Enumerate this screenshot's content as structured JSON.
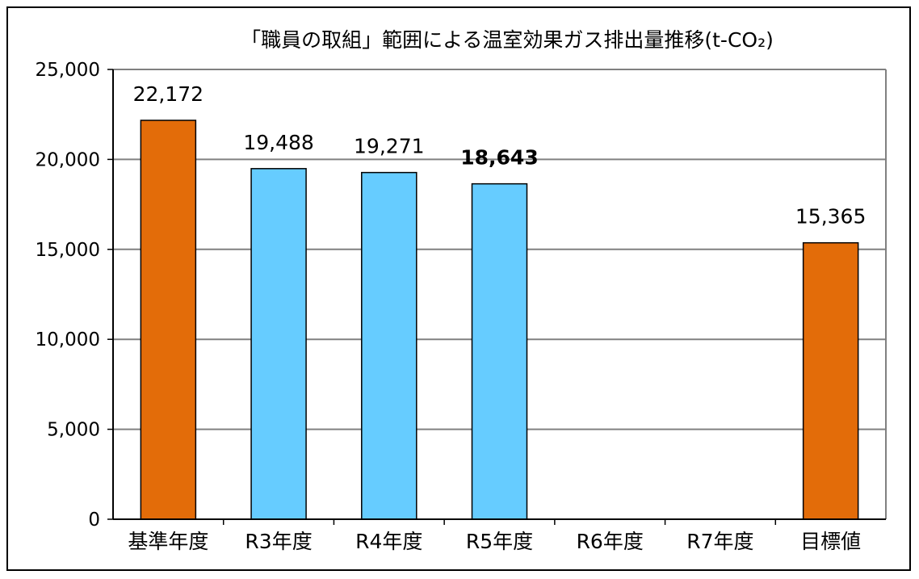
{
  "chart_data": {
    "type": "bar",
    "title": "「職員の取組」範囲による温室効果ガス排出量推移(t-CO₂)",
    "categories": [
      "基準年度",
      "R3年度",
      "R4年度",
      "R5年度",
      "R6年度",
      "R7年度",
      "目標値"
    ],
    "values": [
      22172,
      19488,
      19271,
      18643,
      null,
      null,
      15365
    ],
    "value_labels": [
      "22,172",
      "19,488",
      "19,271",
      "18,643",
      "",
      "",
      "15,365"
    ],
    "bold_labels": [
      false,
      false,
      false,
      true,
      false,
      false,
      false
    ],
    "bar_colors": [
      "#e36c09",
      "#66ccff",
      "#66ccff",
      "#66ccff",
      "#66ccff",
      "#66ccff",
      "#e36c09"
    ],
    "yticks": [
      0,
      5000,
      10000,
      15000,
      20000,
      25000
    ],
    "ytick_labels": [
      "0",
      "5,000",
      "10,000",
      "15,000",
      "20,000",
      "25,000"
    ],
    "ylim": [
      0,
      25000
    ],
    "xlabel": "",
    "ylabel": "",
    "grid": true,
    "legend": "none",
    "colors": {
      "accent_orange": "#e36c09",
      "accent_blue": "#66ccff",
      "gridline": "#808080",
      "axis": "#000000"
    }
  }
}
